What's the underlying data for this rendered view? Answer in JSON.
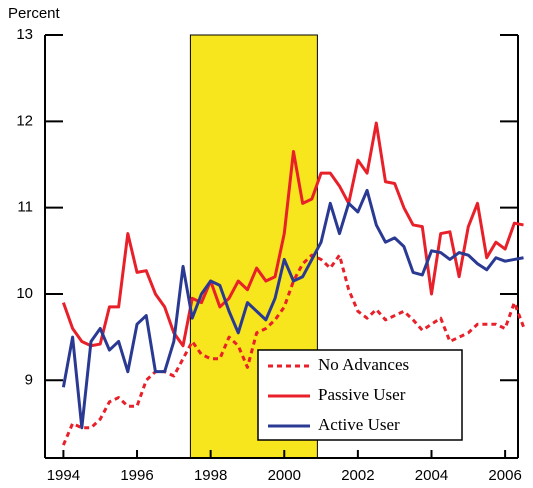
{
  "chart_data": {
    "type": "line",
    "ylabel": "Percent",
    "x": [
      1994,
      1994.25,
      1994.5,
      1994.75,
      1995,
      1995.25,
      1995.5,
      1995.75,
      1996,
      1996.25,
      1996.5,
      1996.75,
      1997,
      1997.25,
      1997.5,
      1997.75,
      1998,
      1998.25,
      1998.5,
      1998.75,
      1999,
      1999.25,
      1999.5,
      1999.75,
      2000,
      2000.25,
      2000.5,
      2000.75,
      2001,
      2001.25,
      2001.5,
      2001.75,
      2002,
      2002.25,
      2002.5,
      2002.75,
      2003,
      2003.25,
      2003.5,
      2003.75,
      2004,
      2004.25,
      2004.5,
      2004.75,
      2005,
      2005.25,
      2005.5,
      2005.75,
      2006,
      2006.25,
      2006.5
    ],
    "series": [
      {
        "name": "No Advances",
        "color": "#e8202a",
        "dashed": true,
        "values": [
          8.25,
          8.5,
          8.45,
          8.45,
          8.55,
          8.75,
          8.8,
          8.7,
          8.7,
          9.0,
          9.1,
          9.1,
          9.05,
          9.25,
          9.45,
          9.3,
          9.25,
          9.25,
          9.5,
          9.4,
          9.15,
          9.55,
          9.6,
          9.7,
          9.85,
          10.15,
          10.35,
          10.45,
          10.4,
          10.3,
          10.45,
          10.05,
          9.8,
          9.72,
          9.82,
          9.7,
          9.75,
          9.8,
          9.7,
          9.58,
          9.65,
          9.72,
          9.45,
          9.5,
          9.55,
          9.65,
          9.65,
          9.65,
          9.6,
          9.9,
          9.62
        ]
      },
      {
        "name": "Passive User",
        "color": "#e8202a",
        "dashed": false,
        "values": [
          9.9,
          9.6,
          9.45,
          9.4,
          9.42,
          9.85,
          9.85,
          10.7,
          10.25,
          10.27,
          10.0,
          9.85,
          9.55,
          9.4,
          9.95,
          9.9,
          10.15,
          9.85,
          9.95,
          10.15,
          10.05,
          10.3,
          10.15,
          10.2,
          10.7,
          11.65,
          11.05,
          11.1,
          11.4,
          11.4,
          11.25,
          11.05,
          11.55,
          11.4,
          11.98,
          11.3,
          11.28,
          11.0,
          10.8,
          10.78,
          10.0,
          10.7,
          10.72,
          10.2,
          10.78,
          11.05,
          10.42,
          10.6,
          10.52,
          10.82,
          10.8
        ]
      },
      {
        "name": "Active User",
        "color": "#2a3a93",
        "dashed": false,
        "values": [
          8.92,
          9.5,
          8.45,
          9.45,
          9.6,
          9.35,
          9.45,
          9.1,
          9.65,
          9.75,
          9.1,
          9.1,
          9.45,
          10.32,
          9.72,
          10.0,
          10.15,
          10.1,
          9.8,
          9.55,
          9.9,
          9.8,
          9.7,
          9.95,
          10.4,
          10.15,
          10.2,
          10.4,
          10.6,
          11.05,
          10.7,
          11.05,
          10.95,
          11.2,
          10.8,
          10.6,
          10.65,
          10.55,
          10.25,
          10.22,
          10.5,
          10.48,
          10.4,
          10.48,
          10.45,
          10.35,
          10.28,
          10.42,
          10.38,
          10.4,
          10.42
        ]
      }
    ],
    "xlim": [
      1993.5,
      2006.35
    ],
    "xticks": [
      1994,
      1996,
      1998,
      2000,
      2002,
      2004,
      2006
    ],
    "ylim": [
      8.1,
      13
    ],
    "yticks": [
      9,
      10,
      11,
      12,
      13
    ],
    "shaded_region": {
      "x": [
        1997.45,
        2000.9
      ],
      "color": "#f7e51d"
    },
    "legend": "lower-right"
  }
}
